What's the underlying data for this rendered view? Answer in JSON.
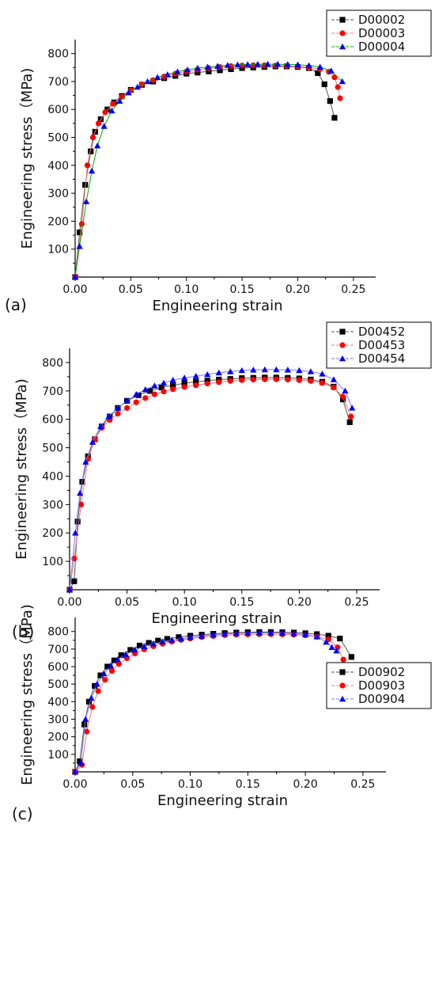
{
  "chart_data": [
    {
      "panel_label": "(a)",
      "type": "line",
      "xlabel": "Engineering strain",
      "ylabel": "Engineering stress（MPa)",
      "xlim": [
        0,
        0.27
      ],
      "ylim": [
        0,
        850
      ],
      "xticks": [
        "0.00",
        "0.05",
        "0.10",
        "0.15",
        "0.20",
        "0.25"
      ],
      "yticks": [
        "100",
        "200",
        "300",
        "400",
        "500",
        "600",
        "700",
        "800"
      ],
      "legend_position": "top-right",
      "series": [
        {
          "name": "D00002",
          "color": "#000000",
          "marker": "square",
          "line_color": "#555555",
          "x": [
            0.0,
            0.004,
            0.009,
            0.014,
            0.018,
            0.023,
            0.029,
            0.035,
            0.042,
            0.05,
            0.06,
            0.07,
            0.08,
            0.09,
            0.1,
            0.11,
            0.12,
            0.13,
            0.14,
            0.15,
            0.16,
            0.17,
            0.18,
            0.19,
            0.2,
            0.21,
            0.218,
            0.224,
            0.229,
            0.233
          ],
          "y": [
            0,
            160,
            330,
            450,
            520,
            565,
            600,
            625,
            648,
            670,
            688,
            700,
            712,
            720,
            728,
            732,
            736,
            740,
            744,
            748,
            750,
            752,
            754,
            754,
            752,
            748,
            730,
            690,
            630,
            570
          ]
        },
        {
          "name": "D00003",
          "color": "#ff0000",
          "marker": "circle",
          "line_color": "#ff7777",
          "x": [
            0.0,
            0.006,
            0.011,
            0.016,
            0.021,
            0.027,
            0.034,
            0.042,
            0.05,
            0.06,
            0.07,
            0.08,
            0.09,
            0.1,
            0.11,
            0.12,
            0.13,
            0.14,
            0.15,
            0.16,
            0.17,
            0.18,
            0.19,
            0.2,
            0.21,
            0.22,
            0.228,
            0.233,
            0.236,
            0.238
          ],
          "y": [
            0,
            190,
            400,
            500,
            550,
            590,
            620,
            645,
            668,
            690,
            705,
            718,
            728,
            736,
            742,
            748,
            752,
            755,
            757,
            758,
            758,
            757,
            756,
            754,
            750,
            745,
            735,
            715,
            680,
            640
          ]
        },
        {
          "name": "D00004",
          "color": "#0000ff",
          "marker": "triangle",
          "line_color": "#00aa00",
          "x": [
            0.0,
            0.004,
            0.01,
            0.015,
            0.02,
            0.026,
            0.033,
            0.04,
            0.048,
            0.056,
            0.065,
            0.074,
            0.083,
            0.092,
            0.101,
            0.11,
            0.119,
            0.128,
            0.137,
            0.146,
            0.155,
            0.164,
            0.173,
            0.182,
            0.191,
            0.2,
            0.21,
            0.22,
            0.23,
            0.24
          ],
          "y": [
            0,
            110,
            270,
            380,
            470,
            540,
            595,
            630,
            660,
            680,
            700,
            715,
            725,
            735,
            742,
            748,
            752,
            755,
            758,
            760,
            761,
            762,
            762,
            762,
            761,
            760,
            757,
            752,
            738,
            700
          ]
        }
      ]
    },
    {
      "panel_label": "(b)",
      "type": "line",
      "xlabel": "Engineering strain",
      "ylabel": "Engineering stress（MPa)",
      "xlim": [
        0,
        0.27
      ],
      "ylim": [
        0,
        850
      ],
      "xticks": [
        "0.00",
        "0.05",
        "0.10",
        "0.15",
        "0.20",
        "0.25"
      ],
      "yticks": [
        "100",
        "200",
        "300",
        "400",
        "500",
        "600",
        "700",
        "800"
      ],
      "legend_position": "top-right",
      "series": [
        {
          "name": "D00452",
          "color": "#000000",
          "marker": "square",
          "line_color": "#555555",
          "x": [
            0.0,
            0.004,
            0.007,
            0.011,
            0.016,
            0.022,
            0.028,
            0.035,
            0.042,
            0.05,
            0.06,
            0.07,
            0.08,
            0.09,
            0.1,
            0.11,
            0.12,
            0.13,
            0.14,
            0.15,
            0.16,
            0.17,
            0.18,
            0.19,
            0.2,
            0.21,
            0.22,
            0.23,
            0.238,
            0.244
          ],
          "y": [
            0,
            30,
            240,
            380,
            470,
            530,
            575,
            610,
            640,
            665,
            685,
            700,
            712,
            720,
            727,
            732,
            736,
            740,
            742,
            745,
            746,
            747,
            747,
            746,
            744,
            740,
            732,
            715,
            670,
            590
          ]
        },
        {
          "name": "D00453",
          "color": "#ff0000",
          "marker": "circle",
          "line_color": "#ff7777",
          "x": [
            0.0,
            0.004,
            0.01,
            0.016,
            0.022,
            0.028,
            0.035,
            0.042,
            0.05,
            0.058,
            0.066,
            0.074,
            0.082,
            0.09,
            0.1,
            0.11,
            0.12,
            0.13,
            0.14,
            0.15,
            0.16,
            0.17,
            0.18,
            0.19,
            0.2,
            0.21,
            0.22,
            0.23,
            0.238,
            0.245
          ],
          "y": [
            0,
            110,
            300,
            460,
            530,
            570,
            598,
            620,
            640,
            660,
            675,
            688,
            698,
            706,
            714,
            720,
            726,
            731,
            735,
            738,
            740,
            741,
            741,
            740,
            738,
            735,
            728,
            712,
            680,
            610
          ]
        },
        {
          "name": "D00454",
          "color": "#0000ff",
          "marker": "triangle",
          "line_color": "#7777ff",
          "x": [
            0.0,
            0.005,
            0.009,
            0.014,
            0.02,
            0.027,
            0.034,
            0.042,
            0.05,
            0.058,
            0.066,
            0.074,
            0.082,
            0.09,
            0.1,
            0.11,
            0.12,
            0.13,
            0.14,
            0.15,
            0.16,
            0.17,
            0.18,
            0.19,
            0.2,
            0.21,
            0.22,
            0.23,
            0.24,
            0.246
          ],
          "y": [
            0,
            200,
            340,
            450,
            520,
            575,
            610,
            640,
            665,
            688,
            705,
            718,
            728,
            738,
            746,
            752,
            758,
            764,
            768,
            772,
            774,
            775,
            775,
            774,
            772,
            768,
            760,
            740,
            700,
            640
          ]
        }
      ]
    },
    {
      "panel_label": "(c)",
      "type": "line",
      "xlabel": "Engineering strain",
      "ylabel": "Engineering stress（MPa)",
      "xlim": [
        0,
        0.27
      ],
      "ylim": [
        0,
        880
      ],
      "xticks": [
        "0.00",
        "0.05",
        "0.10",
        "0.15",
        "0.20",
        "0.25"
      ],
      "yticks": [
        "100",
        "200",
        "300",
        "400",
        "500",
        "600",
        "700",
        "800"
      ],
      "legend_position": "top-right",
      "series": [
        {
          "name": "D00902",
          "color": "#000000",
          "marker": "square",
          "line_color": "#555555",
          "x": [
            0.0,
            0.004,
            0.008,
            0.012,
            0.017,
            0.022,
            0.028,
            0.034,
            0.04,
            0.048,
            0.056,
            0.064,
            0.072,
            0.08,
            0.09,
            0.1,
            0.11,
            0.12,
            0.13,
            0.14,
            0.15,
            0.16,
            0.17,
            0.18,
            0.19,
            0.2,
            0.21,
            0.22,
            0.23,
            0.24
          ],
          "y": [
            0,
            60,
            270,
            400,
            490,
            550,
            600,
            635,
            665,
            695,
            720,
            735,
            748,
            758,
            768,
            776,
            782,
            787,
            791,
            794,
            796,
            797,
            797,
            796,
            794,
            790,
            785,
            776,
            760,
            655
          ]
        },
        {
          "name": "D00903",
          "color": "#ff0000",
          "marker": "circle",
          "line_color": "#ff7777",
          "x": [
            0.0,
            0.006,
            0.01,
            0.015,
            0.02,
            0.026,
            0.032,
            0.038,
            0.045,
            0.052,
            0.06,
            0.068,
            0.076,
            0.084,
            0.092,
            0.1,
            0.11,
            0.12,
            0.13,
            0.14,
            0.15,
            0.16,
            0.17,
            0.18,
            0.19,
            0.2,
            0.21,
            0.22,
            0.228,
            0.233
          ],
          "y": [
            0,
            40,
            230,
            370,
            460,
            525,
            575,
            615,
            648,
            675,
            698,
            716,
            730,
            742,
            752,
            760,
            768,
            774,
            779,
            782,
            784,
            785,
            785,
            784,
            782,
            778,
            770,
            755,
            710,
            640
          ]
        },
        {
          "name": "D00904",
          "color": "#0000ff",
          "marker": "triangle",
          "line_color": "#7777ff",
          "x": [
            0.0,
            0.005,
            0.009,
            0.014,
            0.019,
            0.025,
            0.031,
            0.037,
            0.044,
            0.052,
            0.06,
            0.068,
            0.076,
            0.084,
            0.092,
            0.1,
            0.11,
            0.12,
            0.13,
            0.14,
            0.15,
            0.16,
            0.17,
            0.18,
            0.19,
            0.2,
            0.21,
            0.218,
            0.223,
            0.227
          ],
          "y": [
            0,
            50,
            300,
            420,
            500,
            560,
            605,
            640,
            670,
            695,
            715,
            730,
            742,
            752,
            760,
            767,
            775,
            781,
            786,
            789,
            791,
            792,
            792,
            791,
            788,
            783,
            770,
            740,
            710,
            690
          ]
        }
      ]
    }
  ]
}
